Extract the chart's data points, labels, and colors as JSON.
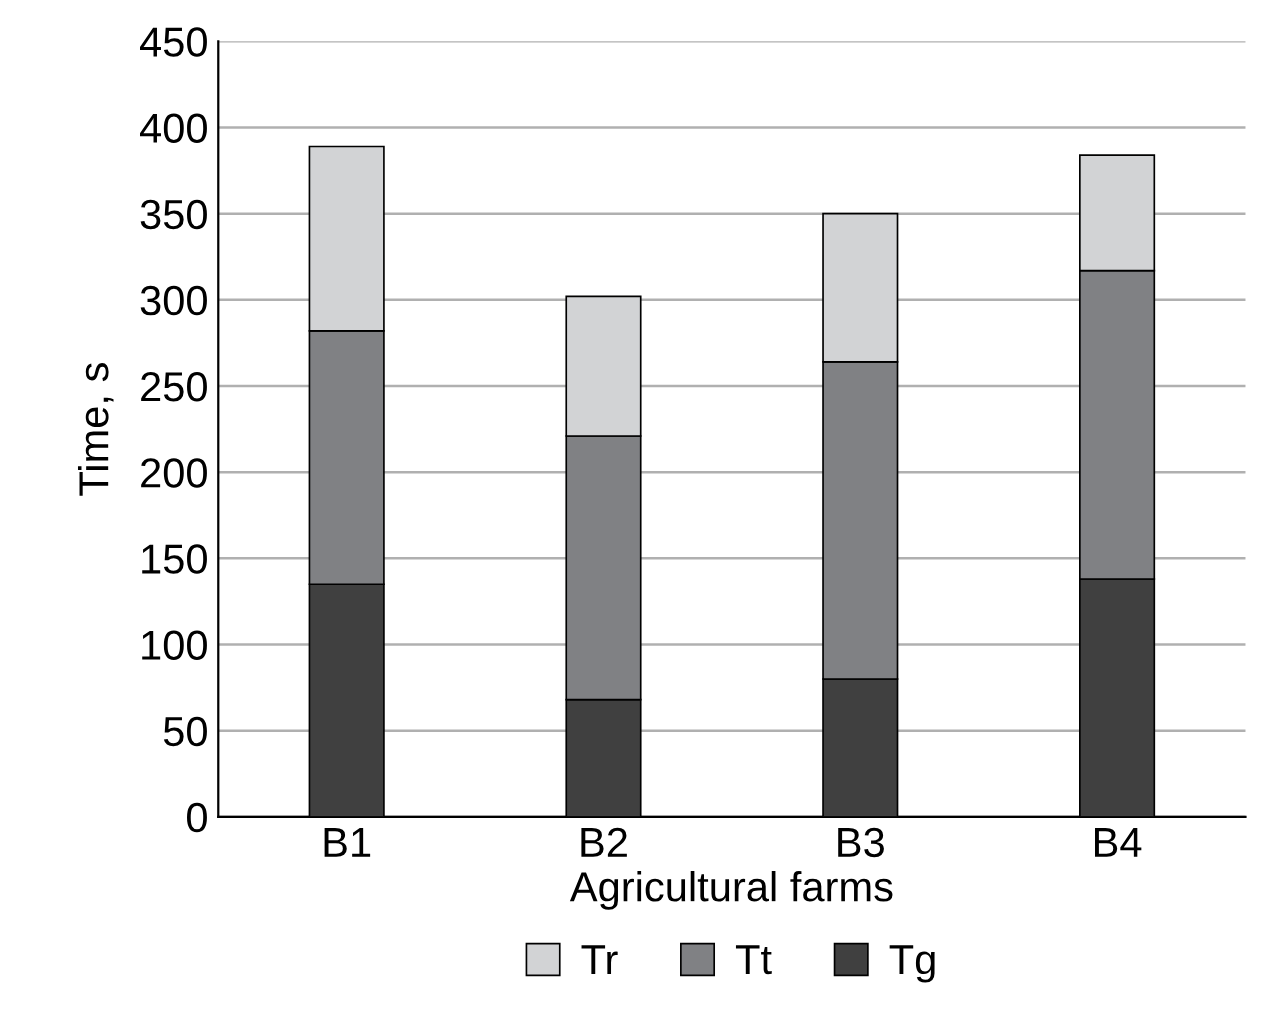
{
  "chart_data": {
    "type": "bar",
    "stacked": true,
    "xlabel": "Agricultural farms",
    "ylabel": "Time, s",
    "categories": [
      "B1",
      "B2",
      "B3",
      "B4"
    ],
    "series": [
      {
        "name": "Tg",
        "color": "#404040",
        "values": [
          135,
          68,
          80,
          138
        ]
      },
      {
        "name": "Tt",
        "color": "#808184",
        "values": [
          147,
          153,
          184,
          179
        ]
      },
      {
        "name": "Tr",
        "color": "#d2d3d5",
        "values": [
          107,
          81,
          86,
          67
        ]
      }
    ],
    "ylim": [
      0,
      450
    ],
    "yticks": [
      0,
      50,
      100,
      150,
      200,
      250,
      300,
      350,
      400,
      450
    ],
    "grid": "y",
    "legend": "bottom"
  }
}
